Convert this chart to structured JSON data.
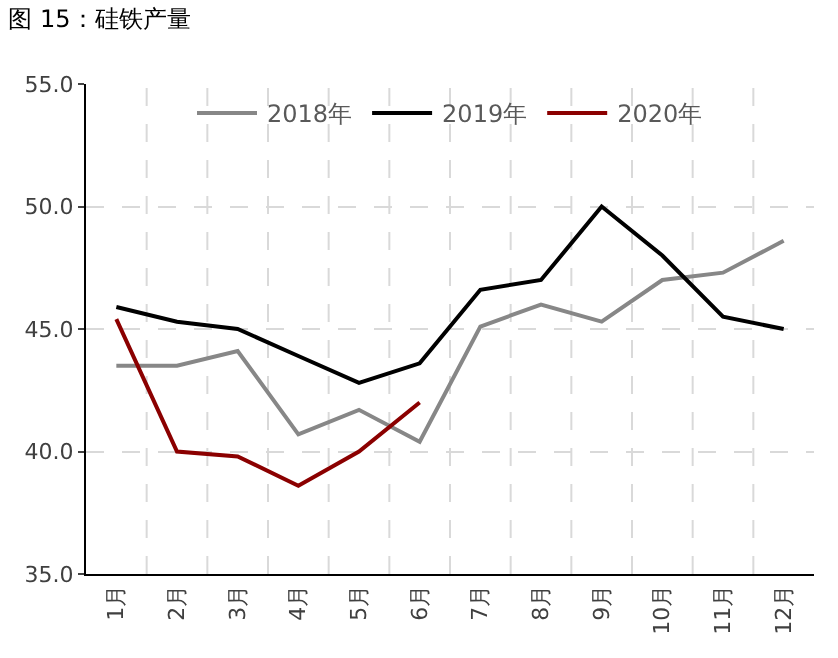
{
  "chart_data": {
    "type": "line",
    "title": "图 15：硅铁产量",
    "categories": [
      "1月",
      "2月",
      "3月",
      "4月",
      "5月",
      "6月",
      "7月",
      "8月",
      "9月",
      "10月",
      "11月",
      "12月"
    ],
    "series": [
      {
        "name": "2018年",
        "color": "#878787",
        "values": [
          43.5,
          43.5,
          44.1,
          40.7,
          41.7,
          40.4,
          45.1,
          46.0,
          45.3,
          47.0,
          47.3,
          48.6
        ]
      },
      {
        "name": "2019年",
        "color": "#000000",
        "values": [
          45.9,
          45.3,
          45.0,
          43.9,
          42.8,
          43.6,
          46.6,
          47.0,
          50.0,
          48.0,
          45.5,
          45.0
        ]
      },
      {
        "name": "2020年",
        "color": "#8b0000",
        "values": [
          45.4,
          40.0,
          39.8,
          38.6,
          40.0,
          42.0,
          null,
          null,
          null,
          null,
          null,
          null
        ]
      }
    ],
    "ylim": [
      35,
      55
    ],
    "yticks": [
      {
        "value": 35,
        "label": "35.0"
      },
      {
        "value": 40,
        "label": "40.0"
      },
      {
        "value": 45,
        "label": "45.0"
      },
      {
        "value": 50,
        "label": "50.0"
      },
      {
        "value": 55,
        "label": "55.0"
      }
    ],
    "grid": true,
    "legend": "top",
    "marker": "none",
    "line_style": "solid"
  }
}
